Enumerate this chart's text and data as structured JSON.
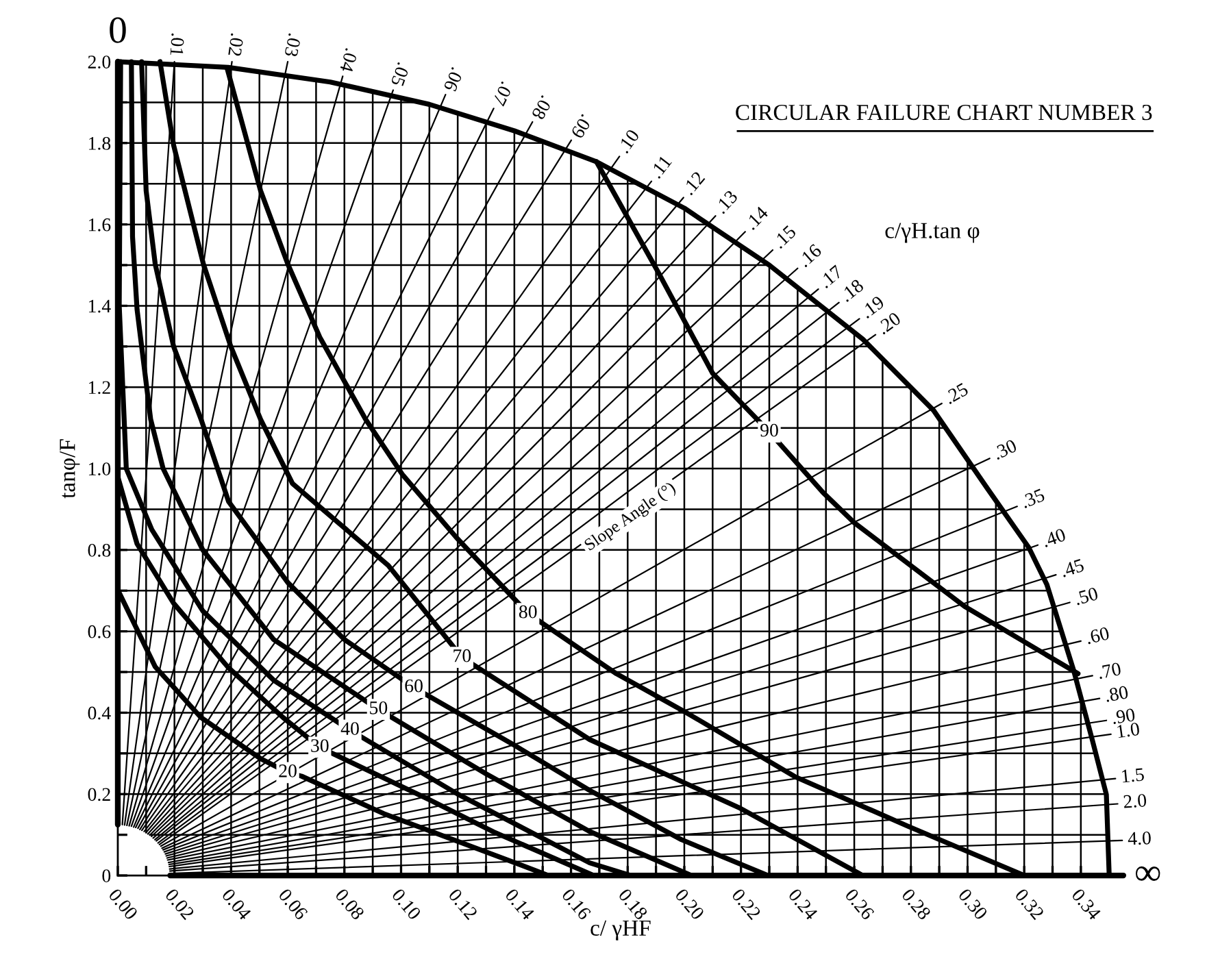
{
  "chart_data": {
    "type": "line",
    "title": "CIRCULAR FAILURE CHART NUMBER 3",
    "xlabel": "c/ γHF",
    "ylabel": "tanφ/F",
    "xlim": [
      0,
      0.355
    ],
    "ylim": [
      0,
      2.0
    ],
    "xticks": [
      {
        "value": 0,
        "label": "0.00"
      },
      {
        "value": 0.01,
        "label": null
      },
      {
        "value": 0.02,
        "label": "0.02"
      },
      {
        "value": 0.03,
        "label": null
      },
      {
        "value": 0.04,
        "label": "0.04"
      },
      {
        "value": 0.05,
        "label": null
      },
      {
        "value": 0.06,
        "label": "0.06"
      },
      {
        "value": 0.07,
        "label": null
      },
      {
        "value": 0.08,
        "label": "0.08"
      },
      {
        "value": 0.09,
        "label": null
      },
      {
        "value": 0.1,
        "label": "0.10"
      },
      {
        "value": 0.11,
        "label": null
      },
      {
        "value": 0.12,
        "label": "0.12"
      },
      {
        "value": 0.13,
        "label": null
      },
      {
        "value": 0.14,
        "label": "0.14"
      },
      {
        "value": 0.15,
        "label": null
      },
      {
        "value": 0.16,
        "label": "0.16"
      },
      {
        "value": 0.17,
        "label": null
      },
      {
        "value": 0.18,
        "label": "0.18"
      },
      {
        "value": 0.19,
        "label": null
      },
      {
        "value": 0.2,
        "label": "0.20"
      },
      {
        "value": 0.21,
        "label": null
      },
      {
        "value": 0.22,
        "label": "0.22"
      },
      {
        "value": 0.23,
        "label": null
      },
      {
        "value": 0.24,
        "label": "0.24"
      },
      {
        "value": 0.25,
        "label": null
      },
      {
        "value": 0.26,
        "label": "0.26"
      },
      {
        "value": 0.27,
        "label": null
      },
      {
        "value": 0.28,
        "label": "0.28"
      },
      {
        "value": 0.29,
        "label": null
      },
      {
        "value": 0.3,
        "label": "0.30"
      },
      {
        "value": 0.31,
        "label": null
      },
      {
        "value": 0.32,
        "label": "0.32"
      },
      {
        "value": 0.33,
        "label": null
      },
      {
        "value": 0.34,
        "label": "0.34"
      }
    ],
    "yticks": [
      0,
      {
        "value": 0.1,
        "label": null
      },
      0.2,
      {
        "value": 0.3,
        "label": null
      },
      0.4,
      {
        "value": 0.5,
        "label": null
      },
      0.6,
      {
        "value": 0.7,
        "label": null
      },
      0.8,
      {
        "value": 0.9,
        "label": null
      },
      {
        "value": 1.0,
        "label": "1.0"
      },
      {
        "value": 1.1,
        "label": null
      },
      1.2,
      {
        "value": 1.3,
        "label": null
      },
      1.4,
      {
        "value": 1.5,
        "label": null
      },
      1.6,
      {
        "value": 1.7,
        "label": null
      },
      1.8,
      {
        "value": 1.9,
        "label": null
      },
      {
        "value": 2.0,
        "label": "2.0"
      }
    ],
    "grid": true,
    "marker": "none",
    "line_style": "solid",
    "annotations": [
      {
        "text": "Slope Angle (°)",
        "x": 0.181,
        "y": 0.88
      },
      "c/γH.tan φ"
    ],
    "series": [
      {
        "color": "#000000",
        "x": [
          0,
          0.039,
          0.075,
          0.11,
          0.14,
          0.169,
          0.2,
          0.23,
          0.263,
          0.288,
          0.307,
          0.3216,
          0.328,
          0.3375,
          0.344,
          0.349,
          0.35
        ],
        "values": [
          2.0,
          1.986,
          1.95,
          1.895,
          1.83,
          1.754,
          1.64,
          1.5,
          1.318,
          1.143,
          0.951,
          0.806,
          0.715,
          0.503,
          0.334,
          0.199,
          0
        ]
      },
      {
        "name": "20",
        "color": "#000000",
        "x": [
          0,
          0.0132,
          0.0294,
          0.0504,
          0.06,
          0.0649,
          0.0939,
          0.1327,
          0.152
        ],
        "values": [
          0.702,
          0.513,
          0.388,
          0.287,
          0.253,
          0.244,
          0.152,
          0.051,
          0
        ]
      },
      {
        "name": "30",
        "color": "#000000",
        "x": [
          0,
          0.0068,
          0.0197,
          0.039,
          0.0584,
          0.0713,
          0.11,
          0.1327,
          0.168
        ],
        "values": [
          0.98,
          0.815,
          0.669,
          0.511,
          0.388,
          0.315,
          0.186,
          0.107,
          0
        ]
      },
      {
        "name": "40",
        "color": "#000000",
        "x": [
          0.001,
          0.0005,
          0.003,
          0.012,
          0.03,
          0.055,
          0.082,
          0.12,
          0.1666,
          0.181
        ],
        "values": [
          2.0,
          1.4,
          1.0,
          0.85,
          0.65,
          0.48,
          0.357,
          0.2,
          0.031,
          0
        ]
      },
      {
        "name": "50",
        "color": "#000000",
        "x": [
          0.0048,
          0.0052,
          0.0068,
          0.0116,
          0.016,
          0.03,
          0.055,
          0.092,
          0.13,
          0.1666,
          0.2025
        ],
        "values": [
          2.0,
          1.57,
          1.391,
          1.121,
          1.0,
          0.8,
          0.58,
          0.408,
          0.25,
          0.108,
          0
        ]
      },
      {
        "name": "60",
        "color": "#000000",
        "x": [
          0.0084,
          0.01,
          0.0132,
          0.0197,
          0.0294,
          0.0391,
          0.06,
          0.08,
          0.1045,
          0.14,
          0.1666,
          0.199,
          0.2295
        ],
        "values": [
          2.0,
          1.683,
          1.503,
          1.3,
          1.121,
          0.919,
          0.72,
          0.58,
          0.462,
          0.32,
          0.209,
          0.088,
          0
        ]
      },
      {
        "name": "70",
        "color": "#000000",
        "x": [
          0.0149,
          0.0197,
          0.0302,
          0.0399,
          0.0504,
          0.0617,
          0.0955,
          0.1215,
          0.1666,
          0.2198,
          0.263
        ],
        "values": [
          2.0,
          1.795,
          1.503,
          1.3,
          1.121,
          0.963,
          0.762,
          0.536,
          0.334,
          0.165,
          0
        ]
      },
      {
        "name": "80",
        "color": "#000000",
        "x": [
          0.0387,
          0.0504,
          0.06,
          0.0713,
          0.0875,
          0.1004,
          0.1196,
          0.1448,
          0.176,
          0.2005,
          0.239,
          0.279,
          0.32
        ],
        "values": [
          1.981,
          1.683,
          1.503,
          1.323,
          1.121,
          0.986,
          0.83,
          0.644,
          0.496,
          0.401,
          0.243,
          0.121,
          0
        ]
      },
      {
        "name": "90",
        "color": "#000000",
        "x": [
          0.169,
          0.191,
          0.21,
          0.23,
          0.249,
          0.26,
          0.299,
          0.339
        ],
        "values": [
          1.754,
          1.48,
          1.234,
          1.09,
          0.941,
          0.867,
          0.661,
          0.496
        ]
      },
      {
        "name": "0",
        "color": "#000000",
        "x": [
          0,
          0
        ],
        "values": [
          0.125,
          2.0
        ]
      },
      {
        "name": ".01",
        "color": "#000000",
        "x": [
          0.0016,
          0.02
        ],
        "values": [
          0.125,
          2.0
        ]
      },
      {
        "name": ".02",
        "color": "#000000",
        "x": [
          0.0024,
          0.0403
        ],
        "values": [
          0.124,
          2.0
        ]
      },
      {
        "name": ".03",
        "color": "#000000",
        "x": [
          0.0032,
          0.06
        ],
        "values": [
          0.123,
          2.0
        ]
      },
      {
        "name": ".04",
        "color": "#000000",
        "x": [
          0.004,
          0.0794
        ],
        "values": [
          0.122,
          1.964
        ]
      },
      {
        "name": ".05",
        "color": "#000000",
        "x": [
          0.0048,
          0.0972
        ],
        "values": [
          0.121,
          1.93
        ]
      },
      {
        "name": ".06",
        "color": "#000000",
        "x": [
          0.0056,
          0.1157
        ],
        "values": [
          0.119,
          1.919
        ]
      },
      {
        "name": ".07",
        "color": "#000000",
        "x": [
          0.0063,
          0.1327
        ],
        "values": [
          0.118,
          1.885
        ]
      },
      {
        "name": ".08",
        "color": "#000000",
        "x": [
          0.0071,
          0.1464
        ],
        "values": [
          0.116,
          1.852
        ]
      },
      {
        "name": ".09",
        "color": "#000000",
        "x": [
          0.0078,
          0.1601
        ],
        "values": [
          0.113,
          1.807
        ]
      },
      {
        "name": ".10",
        "color": "#000000",
        "x": [
          0.0085,
          0.1771
        ],
        "values": [
          0.111,
          1.767
        ]
      },
      {
        "name": ".11",
        "color": "#000000",
        "x": [
          0.0093,
          0.1884
        ],
        "values": [
          0.108,
          1.706
        ]
      },
      {
        "name": ".12",
        "color": "#000000",
        "x": [
          0.0099,
          0.1997
        ],
        "values": [
          0.105,
          1.666
        ]
      },
      {
        "name": ".13",
        "color": "#000000",
        "x": [
          0.0106,
          0.211
        ],
        "values": [
          0.102,
          1.621
        ]
      },
      {
        "name": ".14",
        "color": "#000000",
        "x": [
          0.0113,
          0.2215
        ],
        "values": [
          0.099,
          1.582
        ]
      },
      {
        "name": ".15",
        "color": "#000000",
        "x": [
          0.0119,
          0.2312
        ],
        "values": [
          0.096,
          1.537
        ]
      },
      {
        "name": ".16",
        "color": "#000000",
        "x": [
          0.0125,
          0.24
        ],
        "values": [
          0.092,
          1.492
        ]
      },
      {
        "name": ".17",
        "color": "#000000",
        "x": [
          0.0131,
          0.2473
        ],
        "values": [
          0.088,
          1.441
        ]
      },
      {
        "name": ".18",
        "color": "#000000",
        "x": [
          0.0136,
          0.2546
        ],
        "values": [
          0.085,
          1.408
        ]
      },
      {
        "name": ".19",
        "color": "#000000",
        "x": [
          0.0142,
          0.2618
        ],
        "values": [
          0.08,
          1.368
        ]
      },
      {
        "name": ".20",
        "color": "#000000",
        "x": [
          0.0147,
          0.2675
        ],
        "values": [
          0.076,
          1.329
        ]
      },
      {
        "name": ".25",
        "color": "#000000",
        "x": [
          0.0152,
          0.2909
        ],
        "values": [
          0.072,
          1.16
        ]
      },
      {
        "name": ".30",
        "color": "#000000",
        "x": [
          0.0156,
          0.3078
        ],
        "values": [
          0.067,
          1.025
        ]
      },
      {
        "name": ".35",
        "color": "#000000",
        "x": [
          0.016,
          0.3175
        ],
        "values": [
          0.063,
          0.907
        ]
      },
      {
        "name": ".40",
        "color": "#000000",
        "x": [
          0.0164,
          0.3248
        ],
        "values": [
          0.058,
          0.812
        ]
      },
      {
        "name": ".45",
        "color": "#000000",
        "x": [
          0.0168,
          0.3312
        ],
        "values": [
          0.053,
          0.739
        ]
      },
      {
        "name": ".50",
        "color": "#000000",
        "x": [
          0.0171,
          0.3361
        ],
        "values": [
          0.048,
          0.671
        ]
      },
      {
        "name": ".60",
        "color": "#000000",
        "x": [
          0.0174,
          0.34
        ],
        "values": [
          0.043,
          0.576
        ]
      },
      {
        "name": ".70",
        "color": "#000000",
        "x": [
          0.0176,
          0.3441
        ],
        "values": [
          0.038,
          0.491
        ]
      },
      {
        "name": ".80",
        "color": "#000000",
        "x": [
          0.0179,
          0.3466
        ],
        "values": [
          0.032,
          0.435
        ]
      },
      {
        "name": ".90",
        "color": "#000000",
        "x": [
          0.0181,
          0.349
        ],
        "values": [
          0.027,
          0.381
        ]
      },
      {
        "name": "1.0",
        "color": "#000000",
        "x": [
          0.0182,
          0.3506
        ],
        "values": [
          0.022,
          0.347
        ]
      },
      {
        "name": "1.5",
        "color": "#000000",
        "x": [
          0.0183,
          0.3522
        ],
        "values": [
          0.016,
          0.238
        ]
      },
      {
        "name": "2.0",
        "color": "#000000",
        "x": [
          0.0184,
          0.353
        ],
        "values": [
          0.011,
          0.176
        ]
      },
      {
        "name": "4.0",
        "color": "#000000",
        "x": [
          0.0185,
          0.3546
        ],
        "values": [
          0.005,
          0.086
        ]
      },
      {
        "name": "∞",
        "color": "#000000",
        "x": [
          0.0185,
          0.355
        ],
        "values": [
          0,
          0
        ]
      }
    ]
  }
}
